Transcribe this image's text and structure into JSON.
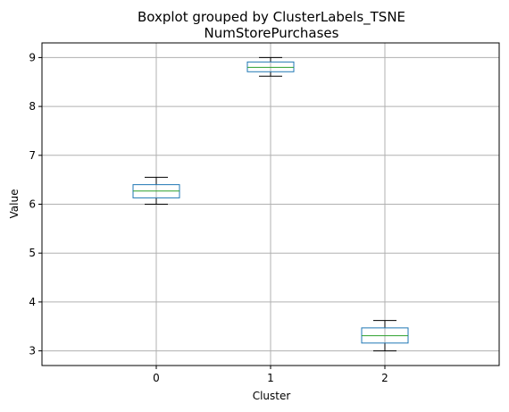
{
  "chart_data": {
    "type": "boxplot",
    "suptitle": "Boxplot grouped by ClusterLabels_TSNE",
    "title": "NumStorePurchases",
    "xlabel": "Cluster",
    "ylabel": "Value",
    "categories": [
      "0",
      "1",
      "2"
    ],
    "boxes": [
      {
        "category": "0",
        "whisker_low": 6.0,
        "q1": 6.13,
        "median": 6.27,
        "q3": 6.4,
        "whisker_high": 6.55
      },
      {
        "category": "1",
        "whisker_low": 8.62,
        "q1": 8.71,
        "median": 8.8,
        "q3": 8.91,
        "whisker_high": 9.0
      },
      {
        "category": "2",
        "whisker_low": 3.0,
        "q1": 3.16,
        "median": 3.31,
        "q3": 3.47,
        "whisker_high": 3.62
      }
    ],
    "yticks": [
      3,
      4,
      5,
      6,
      7,
      8,
      9
    ],
    "ylim": [
      2.7,
      9.3
    ],
    "grid": true,
    "colors": {
      "box": "#1f77b4",
      "median": "#2ca02c",
      "whisker": "#000000",
      "grid": "#b0b0b0"
    }
  }
}
